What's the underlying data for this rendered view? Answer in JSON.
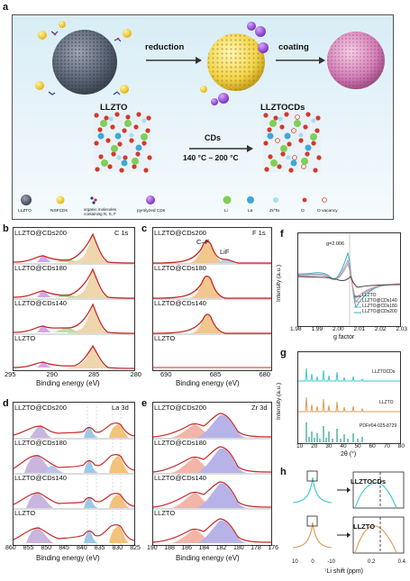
{
  "panel_labels": {
    "a": "a",
    "b": "b",
    "c": "c",
    "d": "d",
    "e": "e",
    "f": "f",
    "g": "g",
    "h": "h"
  },
  "scheme": {
    "reduction": "reduction",
    "coating": "coating",
    "llzto_title": "LLZTO",
    "llztocds_title": "LLZTOCDs",
    "cds": "CDs",
    "temp": "140 °C – 200 °C",
    "legend": {
      "llzto": "LLZTO",
      "nsfcds": "NSFCDs",
      "organic": "organic molecules\ncontaining N, S, F",
      "pyrolyzed": "pyrolyzed CDs",
      "li": "Li",
      "la": "La",
      "zrta": "Zr/Ta",
      "o": "O",
      "vac": "O vacancy"
    }
  },
  "xps": {
    "b": {
      "element": "C 1s",
      "xlabel": "Binding energy (eV)",
      "ticks": [
        "295",
        "290",
        "285",
        "280"
      ],
      "samples": [
        "LLZTO@CDs200",
        "LLZTO@CDs180",
        "LLZTO@CDs140",
        "LLZTO"
      ]
    },
    "c": {
      "element": "F 1s",
      "xlabel": "Binding energy (eV)",
      "ticks": [
        "690",
        "685",
        "680"
      ],
      "samples": [
        "LLZTO@CDs200",
        "LLZTO@CDs180",
        "LLZTO@CDs140",
        "LLZTO"
      ],
      "cf": "C–F",
      "lif": "LiF"
    },
    "d": {
      "element": "La 3d",
      "xlabel": "Binding energy (eV)",
      "ticks": [
        "860",
        "855",
        "850",
        "845",
        "840",
        "835",
        "830",
        "825"
      ],
      "samples": [
        "LLZTO@CDs200",
        "LLZTO@CDs180",
        "LLZTO@CDs140",
        "LLZTO"
      ]
    },
    "e": {
      "element": "Zr 3d",
      "xlabel": "Binding energy (eV)",
      "ticks": [
        "190",
        "188",
        "186",
        "184",
        "182",
        "180",
        "178",
        "176"
      ],
      "samples": [
        "LLZTO@CDs200",
        "LLZTO@CDs180",
        "LLZTO@CDs140",
        "LLZTO"
      ]
    }
  },
  "epr": {
    "ylabel": "Intensity (a.u.)",
    "xlabel": "g factor",
    "ticks": [
      "1.98",
      "1.99",
      "2.00",
      "2.01",
      "2.02",
      "2.03"
    ],
    "gmark": "g=2.006",
    "legend": [
      "LLZTO",
      "LLZTO@CDs140",
      "LLZTO@CDs180",
      "LLZTO@CDs200"
    ],
    "colors": [
      "#444444",
      "#e78d8d",
      "#8aa7c7",
      "#3aaac0"
    ]
  },
  "xrd": {
    "ylabel": "Intensity (a.u.)",
    "xlabel": "2θ (°)",
    "ticks": [
      "10",
      "20",
      "30",
      "40",
      "50",
      "60",
      "70",
      "80"
    ],
    "labels": [
      "LLZTOCDs",
      "LLZTO",
      "PDF#04-025-8729"
    ]
  },
  "nmr": {
    "llztocds": "LLZTOCDs",
    "llzto": "LLZTO",
    "xlabel": "⁷Li shift (ppm)",
    "ticks_left": [
      "10",
      "0",
      "-10"
    ],
    "ticks_right": [
      "0.2",
      "0.4"
    ]
  }
}
